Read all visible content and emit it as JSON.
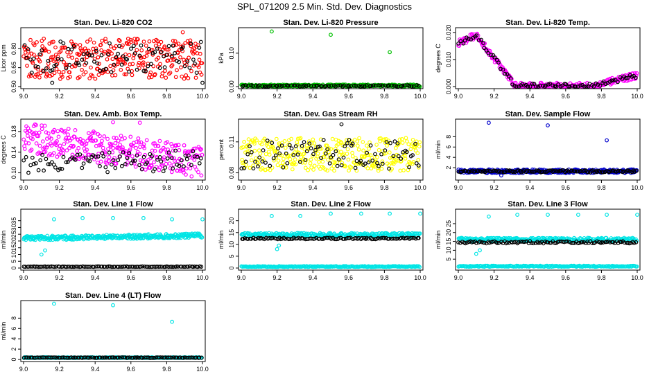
{
  "page": {
    "title": "SPL_071209  2.5 Min. Std. Dev. Diagnostics"
  },
  "chart_data": [
    {
      "type": "scatter",
      "title": "Stan. Dev. Li-820 CO2",
      "ylabel": "Licor ppm",
      "xlim": [
        9.0,
        10.0
      ],
      "ylim": [
        0.5,
        0.95
      ],
      "xticks": [
        "9.0",
        "9.2",
        "9.4",
        "9.6",
        "9.8",
        "10.0"
      ],
      "yticks": [
        "0.50",
        "0.65",
        "0.80"
      ],
      "series": [
        {
          "name": "red",
          "color": "#ff0000",
          "pattern": "band",
          "n": 320,
          "base": 0.72,
          "spread": 0.16,
          "drift": 0,
          "lo": 0.5,
          "hi": 0.95
        },
        {
          "name": "black",
          "color": "#000000",
          "pattern": "band",
          "n": 90,
          "base": 0.73,
          "spread": 0.13,
          "drift": 0,
          "lo": 0.5,
          "hi": 0.95
        }
      ],
      "outliers": [
        {
          "color": "#ff0000",
          "x": 9.89,
          "y": 0.93
        },
        {
          "color": "#000000",
          "x": 9.16,
          "y": 0.53
        },
        {
          "color": "#000000",
          "x": 10.0,
          "y": 0.53
        }
      ]
    },
    {
      "type": "scatter",
      "title": "Stan. Dev. Li-820 Pressure",
      "ylabel": "kPa",
      "xlim": [
        9.0,
        10.0
      ],
      "ylim": [
        0,
        0.17
      ],
      "xticks": [
        "9.0",
        "9.2",
        "9.4",
        "9.6",
        "9.8",
        "10.0"
      ],
      "yticks": [
        "0.00",
        "0.10"
      ],
      "series": [
        {
          "name": "green",
          "color": "#00c000",
          "pattern": "band",
          "n": 260,
          "base": 0.003,
          "spread": 0.003,
          "drift": 0,
          "lo": 0,
          "hi": 0.17
        },
        {
          "name": "black",
          "color": "#000000",
          "pattern": "band",
          "n": 80,
          "base": 0.002,
          "spread": 0.002,
          "drift": 0,
          "lo": 0,
          "hi": 0.17
        }
      ],
      "outliers": [
        {
          "color": "#00c000",
          "x": 9.17,
          "y": 0.165
        },
        {
          "color": "#00c000",
          "x": 9.5,
          "y": 0.155
        },
        {
          "color": "#00c000",
          "x": 9.83,
          "y": 0.103
        }
      ]
    },
    {
      "type": "scatter",
      "title": "Stan. Dev. Li-820 Temp.",
      "ylabel": "degrees C",
      "xlim": [
        9.0,
        10.0
      ],
      "ylim": [
        0,
        0.021
      ],
      "xticks": [
        "9.0",
        "9.2",
        "9.4",
        "9.6",
        "9.8",
        "10.0"
      ],
      "yticks": [
        "0.000",
        "0.010",
        "0.020"
      ],
      "series": [
        {
          "name": "magenta",
          "color": "#ff00ff",
          "pattern": "temp",
          "n": 300,
          "base": 0,
          "spread": 0.0012,
          "drift": 0,
          "lo": 0,
          "hi": 0.021
        },
        {
          "name": "black",
          "color": "#000000",
          "pattern": "temp",
          "n": 90,
          "base": 0,
          "spread": 0.0009,
          "drift": 0,
          "lo": 0,
          "hi": 0.021
        }
      ],
      "outliers": []
    },
    {
      "type": "scatter",
      "title": "Stan. Dev. Amb. Box Temp.",
      "ylabel": "degrees C",
      "xlim": [
        9.0,
        10.0
      ],
      "ylim": [
        0.09,
        0.2
      ],
      "xticks": [
        "9.0",
        "9.2",
        "9.4",
        "9.6",
        "9.8",
        "10.0"
      ],
      "yticks": [
        "0.10",
        "0.14",
        "0.18"
      ],
      "series": [
        {
          "name": "magenta",
          "color": "#ff00ff",
          "pattern": "band",
          "n": 320,
          "base": 0.17,
          "spread": 0.03,
          "drift": -0.05,
          "lo": 0.09,
          "hi": 0.2
        },
        {
          "name": "black",
          "color": "#000000",
          "pattern": "band",
          "n": 90,
          "base": 0.115,
          "spread": 0.02,
          "drift": 0.01,
          "lo": 0.09,
          "hi": 0.2
        }
      ],
      "outliers": [
        {
          "color": "#ff00ff",
          "x": 9.5,
          "y": 0.198
        },
        {
          "color": "#ff00ff",
          "x": 9.65,
          "y": 0.197
        }
      ]
    },
    {
      "type": "scatter",
      "title": "Stan. Dev. Gas Stream RH",
      "ylabel": "percent",
      "xlim": [
        9.0,
        10.0
      ],
      "ylim": [
        0.075,
        0.13
      ],
      "xticks": [
        "9.0",
        "9.2",
        "9.4",
        "9.6",
        "9.8",
        "10.0"
      ],
      "yticks": [
        "0.08",
        "0.11"
      ],
      "series": [
        {
          "name": "yellow",
          "color": "#ffff00",
          "pattern": "band",
          "n": 320,
          "base": 0.098,
          "spread": 0.016,
          "drift": 0,
          "lo": 0.078,
          "hi": 0.128
        },
        {
          "name": "black",
          "color": "#000000",
          "pattern": "band",
          "n": 90,
          "base": 0.098,
          "spread": 0.014,
          "drift": 0,
          "lo": 0.078,
          "hi": 0.128
        }
      ],
      "outliers": [
        {
          "color": "#000000",
          "x": 9.56,
          "y": 0.127
        }
      ]
    },
    {
      "type": "scatter",
      "title": "Stan. Dev. Sample Flow",
      "ylabel": "ml/min",
      "xlim": [
        9.0,
        10.0
      ],
      "ylim": [
        0,
        11
      ],
      "xticks": [
        "9.0",
        "9.2",
        "9.4",
        "9.6",
        "9.8",
        "10.0"
      ],
      "yticks": [
        "2",
        "4",
        "6",
        "8"
      ],
      "series": [
        {
          "name": "blue",
          "color": "#0000cc",
          "pattern": "band",
          "n": 300,
          "base": 1.3,
          "spread": 0.35,
          "drift": 0,
          "lo": 0,
          "hi": 11
        },
        {
          "name": "black",
          "color": "#000000",
          "pattern": "band",
          "n": 120,
          "base": 1.3,
          "spread": 0.2,
          "drift": 0,
          "lo": 0,
          "hi": 11
        }
      ],
      "outliers": [
        {
          "color": "#0000cc",
          "x": 9.17,
          "y": 10.7
        },
        {
          "color": "#0000cc",
          "x": 9.5,
          "y": 10.2
        },
        {
          "color": "#0000cc",
          "x": 9.83,
          "y": 7.3
        },
        {
          "color": "#0000cc",
          "x": 9.24,
          "y": 0.5
        }
      ]
    },
    {
      "type": "scatter",
      "title": "Stan. Dev. Line 1 Flow",
      "ylabel": "ml/min",
      "xlim": [
        9.0,
        10.0
      ],
      "ylim": [
        0,
        42
      ],
      "xticks": [
        "9.0",
        "9.2",
        "9.4",
        "9.6",
        "9.8",
        "10.0"
      ],
      "yticks": [
        "0",
        "5",
        "10",
        "15",
        "20",
        "25",
        "30",
        "35"
      ],
      "series": [
        {
          "name": "cyan",
          "color": "#00e5e5",
          "pattern": "band",
          "n": 320,
          "base": 22,
          "spread": 1.6,
          "drift": 2,
          "lo": 0,
          "hi": 42
        },
        {
          "name": "black",
          "color": "#000000",
          "pattern": "band",
          "n": 110,
          "base": 1,
          "spread": 0.2,
          "drift": 0,
          "lo": 0,
          "hi": 42
        }
      ],
      "outliers": [
        {
          "color": "#00e5e5",
          "x": 9.17,
          "y": 36
        },
        {
          "color": "#00e5e5",
          "x": 9.33,
          "y": 37
        },
        {
          "color": "#00e5e5",
          "x": 9.5,
          "y": 37
        },
        {
          "color": "#00e5e5",
          "x": 9.67,
          "y": 37
        },
        {
          "color": "#00e5e5",
          "x": 9.83,
          "y": 36
        },
        {
          "color": "#00e5e5",
          "x": 10.0,
          "y": 36
        },
        {
          "color": "#00e5e5",
          "x": 9.1,
          "y": 10
        },
        {
          "color": "#00e5e5",
          "x": 9.12,
          "y": 13
        }
      ]
    },
    {
      "type": "scatter",
      "title": "Stan. Dev. Line 2 Flow",
      "ylabel": "ml/min",
      "xlim": [
        9.0,
        10.0
      ],
      "ylim": [
        0,
        24
      ],
      "xticks": [
        "9.0",
        "9.2",
        "9.4",
        "9.6",
        "9.8",
        "10.0"
      ],
      "yticks": [
        "0",
        "5",
        "10",
        "15",
        "20"
      ],
      "series": [
        {
          "name": "cyan-upper",
          "color": "#00e5e5",
          "pattern": "band",
          "n": 260,
          "base": 14,
          "spread": 0.8,
          "drift": 0,
          "lo": 0,
          "hi": 24
        },
        {
          "name": "cyan-lower",
          "color": "#00e5e5",
          "pattern": "band",
          "n": 200,
          "base": 0.6,
          "spread": 0.2,
          "drift": 0,
          "lo": 0,
          "hi": 24
        },
        {
          "name": "black",
          "color": "#000000",
          "pattern": "band",
          "n": 110,
          "base": 12.5,
          "spread": 0.3,
          "drift": 0,
          "lo": 0,
          "hi": 24
        }
      ],
      "outliers": [
        {
          "color": "#00e5e5",
          "x": 9.17,
          "y": 22
        },
        {
          "color": "#00e5e5",
          "x": 9.33,
          "y": 22
        },
        {
          "color": "#00e5e5",
          "x": 9.5,
          "y": 23
        },
        {
          "color": "#00e5e5",
          "x": 9.67,
          "y": 23
        },
        {
          "color": "#00e5e5",
          "x": 9.83,
          "y": 23
        },
        {
          "color": "#00e5e5",
          "x": 10.0,
          "y": 23
        },
        {
          "color": "#00e5e5",
          "x": 9.2,
          "y": 8
        },
        {
          "color": "#00e5e5",
          "x": 9.21,
          "y": 9.5
        }
      ]
    },
    {
      "type": "scatter",
      "title": "Stan. Dev. Line 3 Flow",
      "ylabel": "ml/min",
      "xlim": [
        9.0,
        10.0
      ],
      "ylim": [
        0,
        32
      ],
      "xticks": [
        "9.0",
        "9.2",
        "9.4",
        "9.6",
        "9.8",
        "10.0"
      ],
      "yticks": [
        "5",
        "10",
        "15",
        "20",
        "25"
      ],
      "series": [
        {
          "name": "cyan-upper",
          "color": "#00e5e5",
          "pattern": "band",
          "n": 260,
          "base": 16,
          "spread": 1.0,
          "drift": 0,
          "lo": 0,
          "hi": 32
        },
        {
          "name": "cyan-lower",
          "color": "#00e5e5",
          "pattern": "band",
          "n": 200,
          "base": 1.0,
          "spread": 0.3,
          "drift": 0,
          "lo": 0,
          "hi": 32
        },
        {
          "name": "black",
          "color": "#000000",
          "pattern": "band",
          "n": 110,
          "base": 14.5,
          "spread": 0.6,
          "drift": 0,
          "lo": 0,
          "hi": 32
        }
      ],
      "outliers": [
        {
          "color": "#00e5e5",
          "x": 9.17,
          "y": 29
        },
        {
          "color": "#00e5e5",
          "x": 9.33,
          "y": 30
        },
        {
          "color": "#00e5e5",
          "x": 9.5,
          "y": 30
        },
        {
          "color": "#00e5e5",
          "x": 9.67,
          "y": 30
        },
        {
          "color": "#00e5e5",
          "x": 9.83,
          "y": 30
        },
        {
          "color": "#00e5e5",
          "x": 10.0,
          "y": 30
        },
        {
          "color": "#00e5e5",
          "x": 9.1,
          "y": 8
        },
        {
          "color": "#00e5e5",
          "x": 9.12,
          "y": 10
        }
      ]
    },
    {
      "type": "scatter",
      "title": "Stan. Dev. Line 4 (LT) Flow",
      "ylabel": "ml/min",
      "xlim": [
        9.0,
        10.0
      ],
      "ylim": [
        0,
        11
      ],
      "xticks": [
        "9.0",
        "9.2",
        "9.4",
        "9.6",
        "9.8",
        "10.0"
      ],
      "yticks": [
        "0",
        "2",
        "4",
        "6",
        "8"
      ],
      "series": [
        {
          "name": "cyan",
          "color": "#00e5e5",
          "pattern": "band",
          "n": 260,
          "base": 0.35,
          "spread": 0.08,
          "drift": 0,
          "lo": 0,
          "hi": 11
        },
        {
          "name": "black",
          "color": "#000000",
          "pattern": "band",
          "n": 110,
          "base": 0.35,
          "spread": 0.05,
          "drift": 0,
          "lo": 0,
          "hi": 11
        }
      ],
      "outliers": [
        {
          "color": "#00e5e5",
          "x": 9.17,
          "y": 10.8
        },
        {
          "color": "#00e5e5",
          "x": 9.5,
          "y": 10.5
        },
        {
          "color": "#00e5e5",
          "x": 9.83,
          "y": 7.3
        }
      ]
    }
  ]
}
